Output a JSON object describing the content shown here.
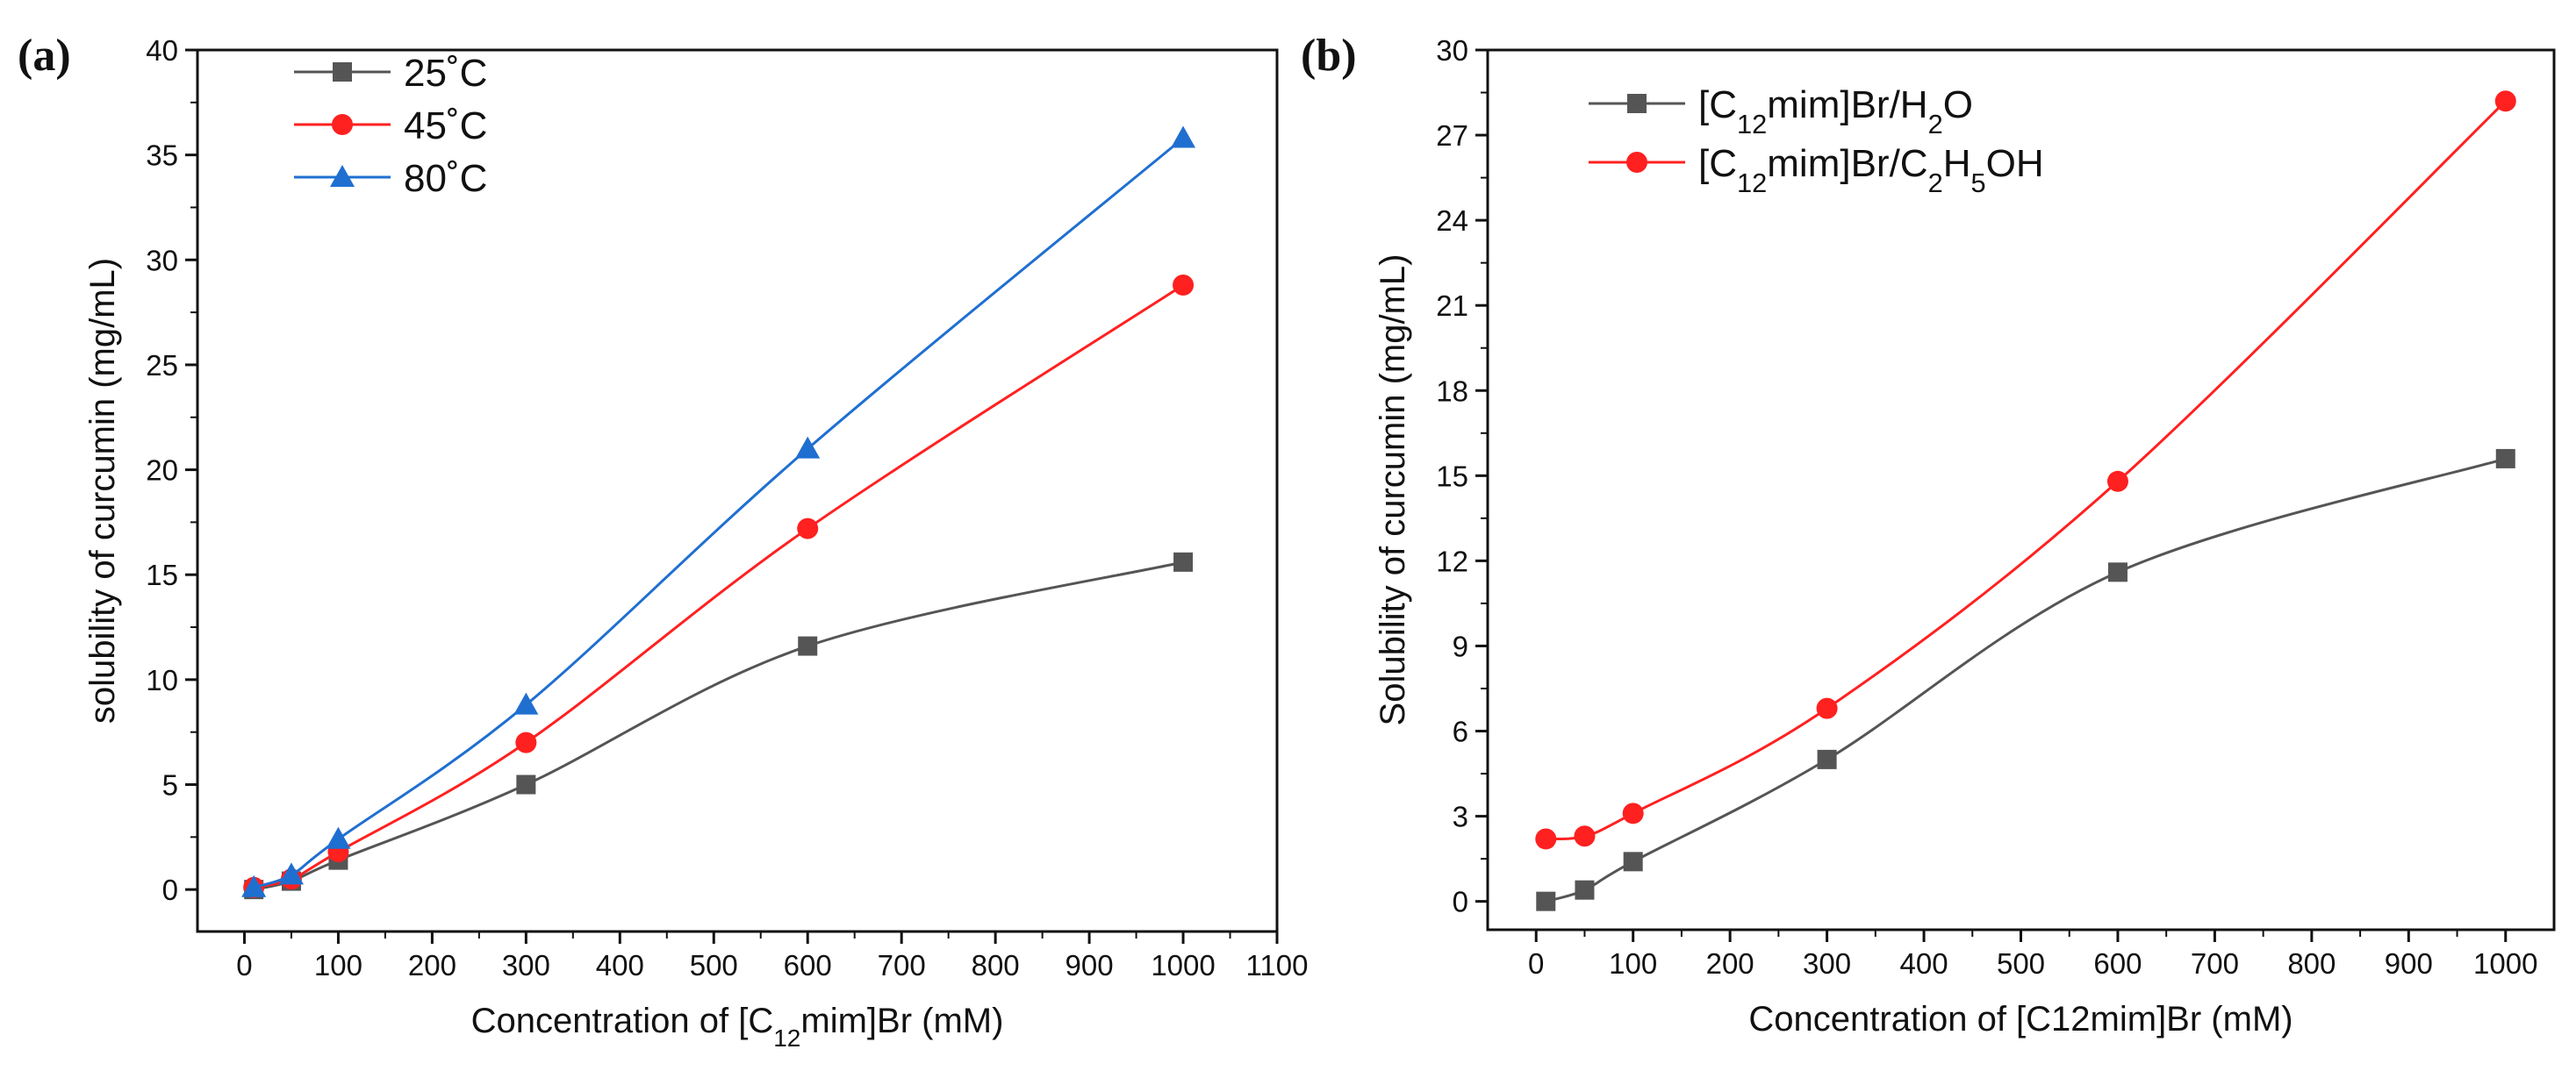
{
  "chart_data": [
    {
      "type": "line",
      "panel_label": "(a)",
      "xlabel": "Concentration of [C12mim]Br (mM)",
      "xlabel_parts": [
        "Concentration of [C",
        "12",
        "mim]Br (mM)"
      ],
      "ylabel": "solubility of curcumin (mg/mL)",
      "xlim": [
        -50,
        1100
      ],
      "ylim": [
        -2,
        40
      ],
      "xticks": [
        0,
        100,
        200,
        300,
        400,
        500,
        600,
        700,
        800,
        900,
        1000,
        1100
      ],
      "yticks": [
        0,
        5,
        10,
        15,
        20,
        25,
        30,
        35,
        40
      ],
      "x": [
        10,
        50,
        100,
        300,
        600,
        1000
      ],
      "legend_position": "top-left",
      "series": [
        {
          "name": "25˚C",
          "label_parts": [
            "25˚C"
          ],
          "color": "#555555",
          "marker": "square",
          "values": [
            0.0,
            0.4,
            1.4,
            5.0,
            11.6,
            15.6
          ]
        },
        {
          "name": "45˚C",
          "label_parts": [
            "45˚C"
          ],
          "color": "#ff2020",
          "marker": "circle",
          "values": [
            0.1,
            0.5,
            1.8,
            7.0,
            17.2,
            28.8
          ]
        },
        {
          "name": "80˚C",
          "label_parts": [
            "80˚C"
          ],
          "color": "#1f6fd1",
          "marker": "triangle",
          "values": [
            0.1,
            0.7,
            2.4,
            8.8,
            21.0,
            35.8
          ]
        }
      ]
    },
    {
      "type": "line",
      "panel_label": "(b)",
      "xlabel": "Concentration of [C12mim]Br (mM)",
      "xlabel_parts": [
        "Concentration of [C12mim]Br (mM)"
      ],
      "ylabel": "Solubility of curcumin (mg/mL)",
      "xlim": [
        -50,
        1050
      ],
      "ylim": [
        -1,
        30
      ],
      "xticks": [
        0,
        100,
        200,
        300,
        400,
        500,
        600,
        700,
        800,
        900,
        1000
      ],
      "yticks": [
        0,
        3,
        6,
        9,
        12,
        15,
        18,
        21,
        24,
        27,
        30
      ],
      "x": [
        10,
        50,
        100,
        300,
        600,
        1000
      ],
      "legend_position": "top-left",
      "series": [
        {
          "name": "[C12mim]Br/H2O",
          "label_parts": [
            "[C",
            "12",
            "mim]Br/H",
            "2",
            "O"
          ],
          "color": "#555555",
          "marker": "square",
          "values": [
            0.0,
            0.4,
            1.4,
            5.0,
            11.6,
            15.6
          ]
        },
        {
          "name": "[C12mim]Br/C2H5OH",
          "label_parts": [
            "[C",
            "12",
            "mim]Br/C",
            "2",
            "H",
            "5",
            "OH"
          ],
          "color": "#ff2020",
          "marker": "circle",
          "values": [
            2.2,
            2.3,
            3.1,
            6.8,
            14.8,
            28.2
          ]
        }
      ]
    }
  ]
}
